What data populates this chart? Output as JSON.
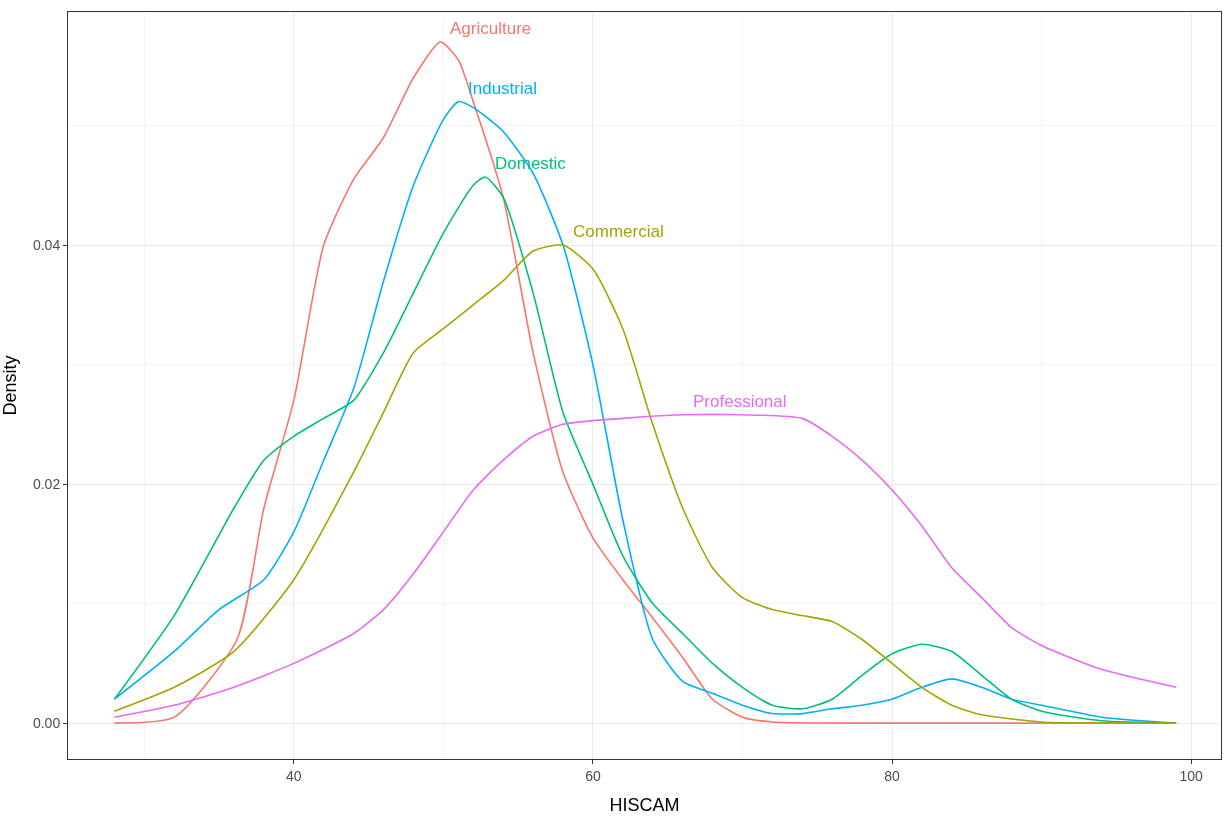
{
  "chart_data": {
    "type": "line",
    "xlabel": "HISCAM",
    "ylabel": "Density",
    "xlim": [
      24.9,
      102
    ],
    "ylim": [
      -0.003,
      0.0595
    ],
    "xticks": [
      {
        "value": 30,
        "label": null
      },
      40,
      {
        "value": 50,
        "label": null
      },
      60,
      {
        "value": 70,
        "label": null
      },
      80,
      {
        "value": 90,
        "label": null
      },
      100
    ],
    "yticks": [
      {
        "value": 0,
        "label": "0.00"
      },
      {
        "value": 0.01,
        "label": null
      },
      {
        "value": 0.02,
        "label": "0.02"
      },
      {
        "value": 0.03,
        "label": null
      },
      {
        "value": 0.04,
        "label": "0.04"
      },
      {
        "value": 0.05,
        "label": null
      }
    ],
    "grid": true,
    "legend": false,
    "marker": "none",
    "line_style": "solid",
    "series": [
      {
        "name": "Agriculture",
        "color": "#F8766D",
        "x": [
          28,
          32,
          36.2,
          38,
          40,
          42,
          44,
          46,
          48,
          49.8,
          51,
          52,
          54,
          56,
          58,
          60,
          62,
          64,
          66,
          68,
          70,
          72,
          80,
          99
        ],
        "values": [
          0,
          0.0005,
          0.007,
          0.018,
          0.027,
          0.04,
          0.0455,
          0.049,
          0.054,
          0.057,
          0.0555,
          0.052,
          0.044,
          0.031,
          0.021,
          0.0155,
          0.012,
          0.0088,
          0.0055,
          0.002,
          0.0005,
          0.0001,
          0,
          0
        ]
      },
      {
        "name": "Industrial",
        "color": "#00B0F6",
        "x": [
          28,
          32,
          35,
          38,
          40,
          42,
          44,
          46,
          48,
          50,
          51,
          52,
          54,
          56,
          58,
          60,
          62,
          64,
          66,
          68,
          70,
          72,
          74,
          76,
          78,
          80,
          82,
          84,
          86,
          88,
          90,
          94,
          99
        ],
        "values": [
          0.002,
          0.006,
          0.0095,
          0.012,
          0.016,
          0.022,
          0.028,
          0.037,
          0.045,
          0.0505,
          0.052,
          0.0515,
          0.0495,
          0.046,
          0.04,
          0.03,
          0.017,
          0.007,
          0.0035,
          0.0025,
          0.0015,
          0.0008,
          0.0008,
          0.0012,
          0.0015,
          0.002,
          0.003,
          0.0037,
          0.003,
          0.002,
          0.0015,
          0.0005,
          0
        ]
      },
      {
        "name": "Domestic",
        "color": "#00BF7D",
        "x": [
          28,
          32,
          36,
          38,
          40,
          42,
          44,
          46,
          48,
          50,
          52,
          52.8,
          54,
          56,
          58,
          60,
          62,
          64,
          66,
          68,
          70,
          72,
          74,
          76,
          78,
          80,
          82,
          84,
          86,
          88,
          90,
          94,
          99
        ],
        "values": [
          0.002,
          0.009,
          0.018,
          0.022,
          0.024,
          0.0255,
          0.027,
          0.031,
          0.036,
          0.041,
          0.045,
          0.0457,
          0.044,
          0.036,
          0.026,
          0.02,
          0.014,
          0.01,
          0.0075,
          0.005,
          0.003,
          0.0015,
          0.0012,
          0.002,
          0.004,
          0.0058,
          0.0066,
          0.006,
          0.004,
          0.002,
          0.001,
          0.0002,
          0
        ]
      },
      {
        "name": "Commercial",
        "color": "#A3A500",
        "x": [
          28,
          32,
          36,
          40,
          44,
          46,
          48,
          50,
          52,
          54,
          56,
          58,
          60,
          62,
          64,
          66,
          68,
          70,
          72,
          74,
          76,
          78,
          80,
          82,
          84,
          86,
          90,
          99
        ],
        "values": [
          0.001,
          0.003,
          0.006,
          0.012,
          0.021,
          0.026,
          0.031,
          0.033,
          0.035,
          0.037,
          0.0395,
          0.04,
          0.038,
          0.033,
          0.025,
          0.018,
          0.013,
          0.0105,
          0.0095,
          0.009,
          0.0085,
          0.007,
          0.005,
          0.003,
          0.0015,
          0.0007,
          0.0001,
          0
        ]
      },
      {
        "name": "Professional",
        "color": "#E76BF3",
        "x": [
          28,
          32,
          36,
          40,
          44,
          46,
          48,
          50,
          52,
          54,
          56,
          58,
          62,
          66,
          70,
          74,
          76,
          78,
          80,
          82,
          84,
          86,
          88,
          90,
          94,
          99
        ],
        "values": [
          0.0005,
          0.0015,
          0.003,
          0.005,
          0.0075,
          0.0095,
          0.0125,
          0.016,
          0.0195,
          0.022,
          0.024,
          0.025,
          0.0255,
          0.0258,
          0.0258,
          0.0255,
          0.024,
          0.022,
          0.0195,
          0.0165,
          0.013,
          0.0105,
          0.008,
          0.0065,
          0.0045,
          0.003
        ]
      }
    ]
  }
}
